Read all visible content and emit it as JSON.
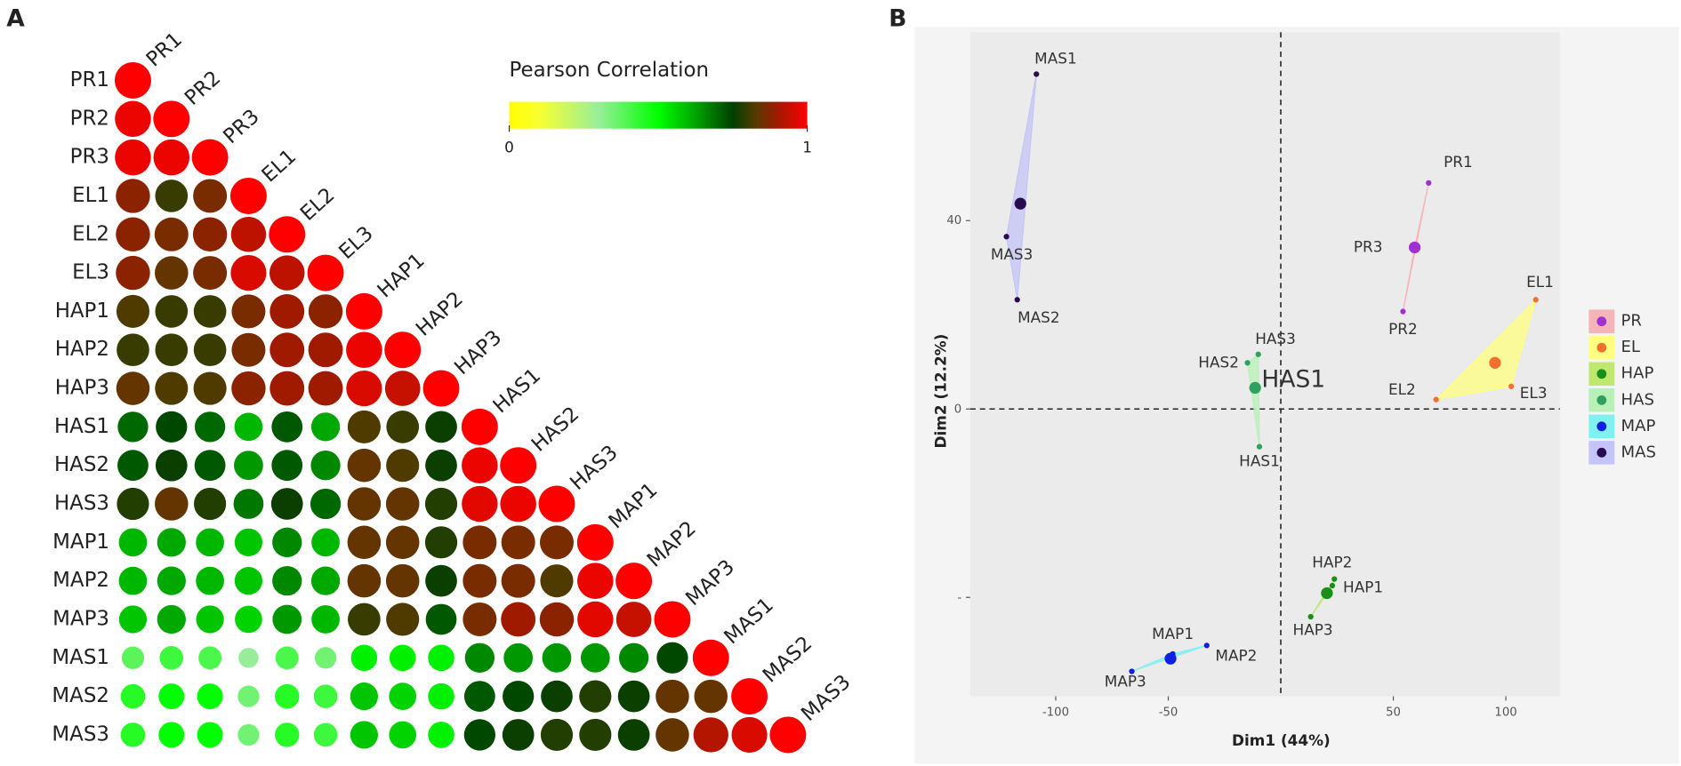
{
  "chart_data": [
    {
      "type": "corrplot",
      "panel": "A",
      "labels": [
        "PR1",
        "PR2",
        "PR3",
        "EL1",
        "EL2",
        "EL3",
        "HAP1",
        "HAP2",
        "HAP3",
        "HAS1",
        "HAS2",
        "HAS3",
        "MAP1",
        "MAP2",
        "MAP3",
        "MAS1",
        "MAS2",
        "MAS3"
      ],
      "matrix": [
        [
          1
        ],
        [
          0.98,
          1
        ],
        [
          0.98,
          0.98,
          1
        ],
        [
          0.88,
          0.8,
          0.86,
          1
        ],
        [
          0.88,
          0.86,
          0.88,
          0.93,
          1
        ],
        [
          0.88,
          0.84,
          0.86,
          0.96,
          0.93,
          1
        ],
        [
          0.82,
          0.8,
          0.8,
          0.86,
          0.9,
          0.88,
          1
        ],
        [
          0.8,
          0.8,
          0.8,
          0.86,
          0.9,
          0.9,
          0.98,
          1
        ],
        [
          0.84,
          0.82,
          0.82,
          0.88,
          0.9,
          0.9,
          0.96,
          0.94,
          1
        ],
        [
          0.7,
          0.74,
          0.7,
          0.6,
          0.72,
          0.62,
          0.82,
          0.8,
          0.76,
          1
        ],
        [
          0.72,
          0.76,
          0.72,
          0.64,
          0.72,
          0.66,
          0.84,
          0.82,
          0.76,
          0.98,
          1
        ],
        [
          0.78,
          0.84,
          0.78,
          0.68,
          0.76,
          0.7,
          0.84,
          0.84,
          0.78,
          0.97,
          0.98,
          1
        ],
        [
          0.6,
          0.62,
          0.6,
          0.58,
          0.66,
          0.6,
          0.84,
          0.84,
          0.78,
          0.86,
          0.86,
          0.86,
          1
        ],
        [
          0.6,
          0.62,
          0.6,
          0.58,
          0.66,
          0.62,
          0.84,
          0.84,
          0.76,
          0.86,
          0.86,
          0.82,
          0.98,
          1
        ],
        [
          0.58,
          0.62,
          0.58,
          0.56,
          0.64,
          0.6,
          0.8,
          0.82,
          0.72,
          0.86,
          0.9,
          0.88,
          0.97,
          0.94,
          1
        ],
        [
          0.38,
          0.42,
          0.4,
          0.3,
          0.4,
          0.35,
          0.52,
          0.52,
          0.52,
          0.66,
          0.64,
          0.64,
          0.64,
          0.66,
          0.74,
          1
        ],
        [
          0.45,
          0.5,
          0.5,
          0.35,
          0.45,
          0.42,
          0.58,
          0.56,
          0.52,
          0.72,
          0.74,
          0.76,
          0.78,
          0.76,
          0.84,
          0.84,
          1
        ],
        [
          0.45,
          0.5,
          0.5,
          0.35,
          0.45,
          0.42,
          0.58,
          0.56,
          0.52,
          0.74,
          0.76,
          0.78,
          0.78,
          0.76,
          0.84,
          0.92,
          0.96,
          1
        ]
      ],
      "colorbar_title": "Pearson Correlation",
      "colorbar_ticks": [
        0,
        1
      ],
      "colorscale": [
        [
          0,
          "#ffff00"
        ],
        [
          0.1,
          "#f8ff30"
        ],
        [
          0.3,
          "#98ee98"
        ],
        [
          0.5,
          "#00ff00"
        ],
        [
          0.62,
          "#00a800"
        ],
        [
          0.75,
          "#004000"
        ],
        [
          0.83,
          "#5a3a00"
        ],
        [
          0.9,
          "#a01a00"
        ],
        [
          1,
          "#ff0000"
        ]
      ]
    },
    {
      "type": "scatter",
      "panel": "B",
      "x_label": "Dim1 (44%)",
      "y_label": "Dim2 (12.2%)",
      "xlim": [
        -138,
        124
      ],
      "ylim": [
        -61,
        80
      ],
      "xticks": [
        -100,
        -50,
        50,
        100
      ],
      "yticks": [
        40,
        0,
        {
          "value": -40,
          "label": "-"
        }
      ],
      "series": [
        {
          "name": "PR",
          "color": "#a030d0",
          "fill": "#f4b4b8",
          "labels": [
            "PR1",
            "PR2",
            "PR3"
          ],
          "x": [
            65.7,
            54.3,
            59.5
          ],
          "y": [
            48,
            20.7,
            34.3
          ],
          "centroid": [
            59.5,
            34.3
          ]
        },
        {
          "name": "EL",
          "color": "#f07030",
          "fill": "#ffff80",
          "labels": [
            "EL1",
            "EL2",
            "EL3"
          ],
          "x": [
            113.3,
            69,
            102.4
          ],
          "y": [
            23.2,
            2,
            4.8
          ],
          "centroid": [
            95.2,
            9.8
          ]
        },
        {
          "name": "HAP",
          "color": "#189018",
          "fill": "#c0e870",
          "labels": [
            "HAP1",
            "HAP2",
            "HAP3"
          ],
          "x": [
            22.9,
            23.8,
            13.3
          ],
          "y": [
            -37.5,
            -36.1,
            -44.1
          ],
          "centroid": [
            20.5,
            -39.1
          ]
        },
        {
          "name": "HAS",
          "color": "#30a060",
          "fill": "#b8f0b8",
          "labels": [
            "HAS1",
            "HAS2",
            "HAS3"
          ],
          "x": [
            -9.5,
            -14.8,
            -10
          ],
          "y": [
            -8,
            9.8,
            11.6
          ],
          "centroid": [
            -11.4,
            4.5
          ],
          "centroid_label": "HAS1"
        },
        {
          "name": "MAP",
          "color": "#1020e0",
          "fill": "#80f0f0",
          "labels": [
            "MAP1",
            "MAP2",
            "MAP3"
          ],
          "x": [
            -48,
            -32.9,
            -66.2
          ],
          "y": [
            -52,
            -50.2,
            -55.7
          ],
          "centroid": [
            -49,
            -53
          ]
        },
        {
          "name": "MAS",
          "color": "#2a0a50",
          "fill": "#c4c4f8",
          "labels": [
            "MAS1",
            "MAS2",
            "MAS3"
          ],
          "x": [
            -108.6,
            -117.1,
            -121.9
          ],
          "y": [
            71.1,
            23.2,
            36.6
          ],
          "centroid": [
            -115.7,
            43.6
          ]
        }
      ]
    }
  ]
}
